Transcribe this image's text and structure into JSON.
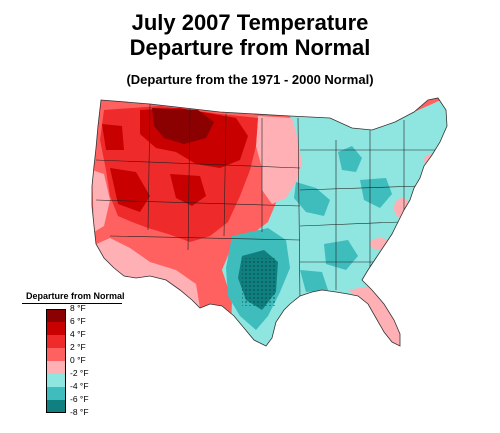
{
  "title": {
    "line1": "July 2007 Temperature",
    "line2": "Departure from Normal",
    "subtitle": "(Departure from the 1971 - 2000 Normal)"
  },
  "legend": {
    "title": "Departure from Normal",
    "bins": [
      {
        "label": "8 °F",
        "color": "#8b0000"
      },
      {
        "label": "6 °F",
        "color": "#c80000"
      },
      {
        "label": "4 °F",
        "color": "#ee2a2a"
      },
      {
        "label": "2 °F",
        "color": "#ff6060"
      },
      {
        "label": "0 °F",
        "color": "#ffb0b4"
      },
      {
        "label": "-2 °F",
        "color": "#8fe5e0"
      },
      {
        "label": "-4 °F",
        "color": "#3fbcbc"
      },
      {
        "label": "-6 °F",
        "color": "#0f7f7f"
      },
      {
        "label": "-8 °F",
        "color": "#00007f"
      }
    ]
  },
  "colors": {
    "hot_extreme": "#8b0000",
    "hot_strong": "#c80000",
    "hot": "#ee2a2a",
    "warm": "#ff6060",
    "slightly_warm": "#ffb0b4",
    "slightly_cool": "#8fe5e0",
    "cool": "#3fbcbc",
    "cold": "#0f7f7f"
  }
}
